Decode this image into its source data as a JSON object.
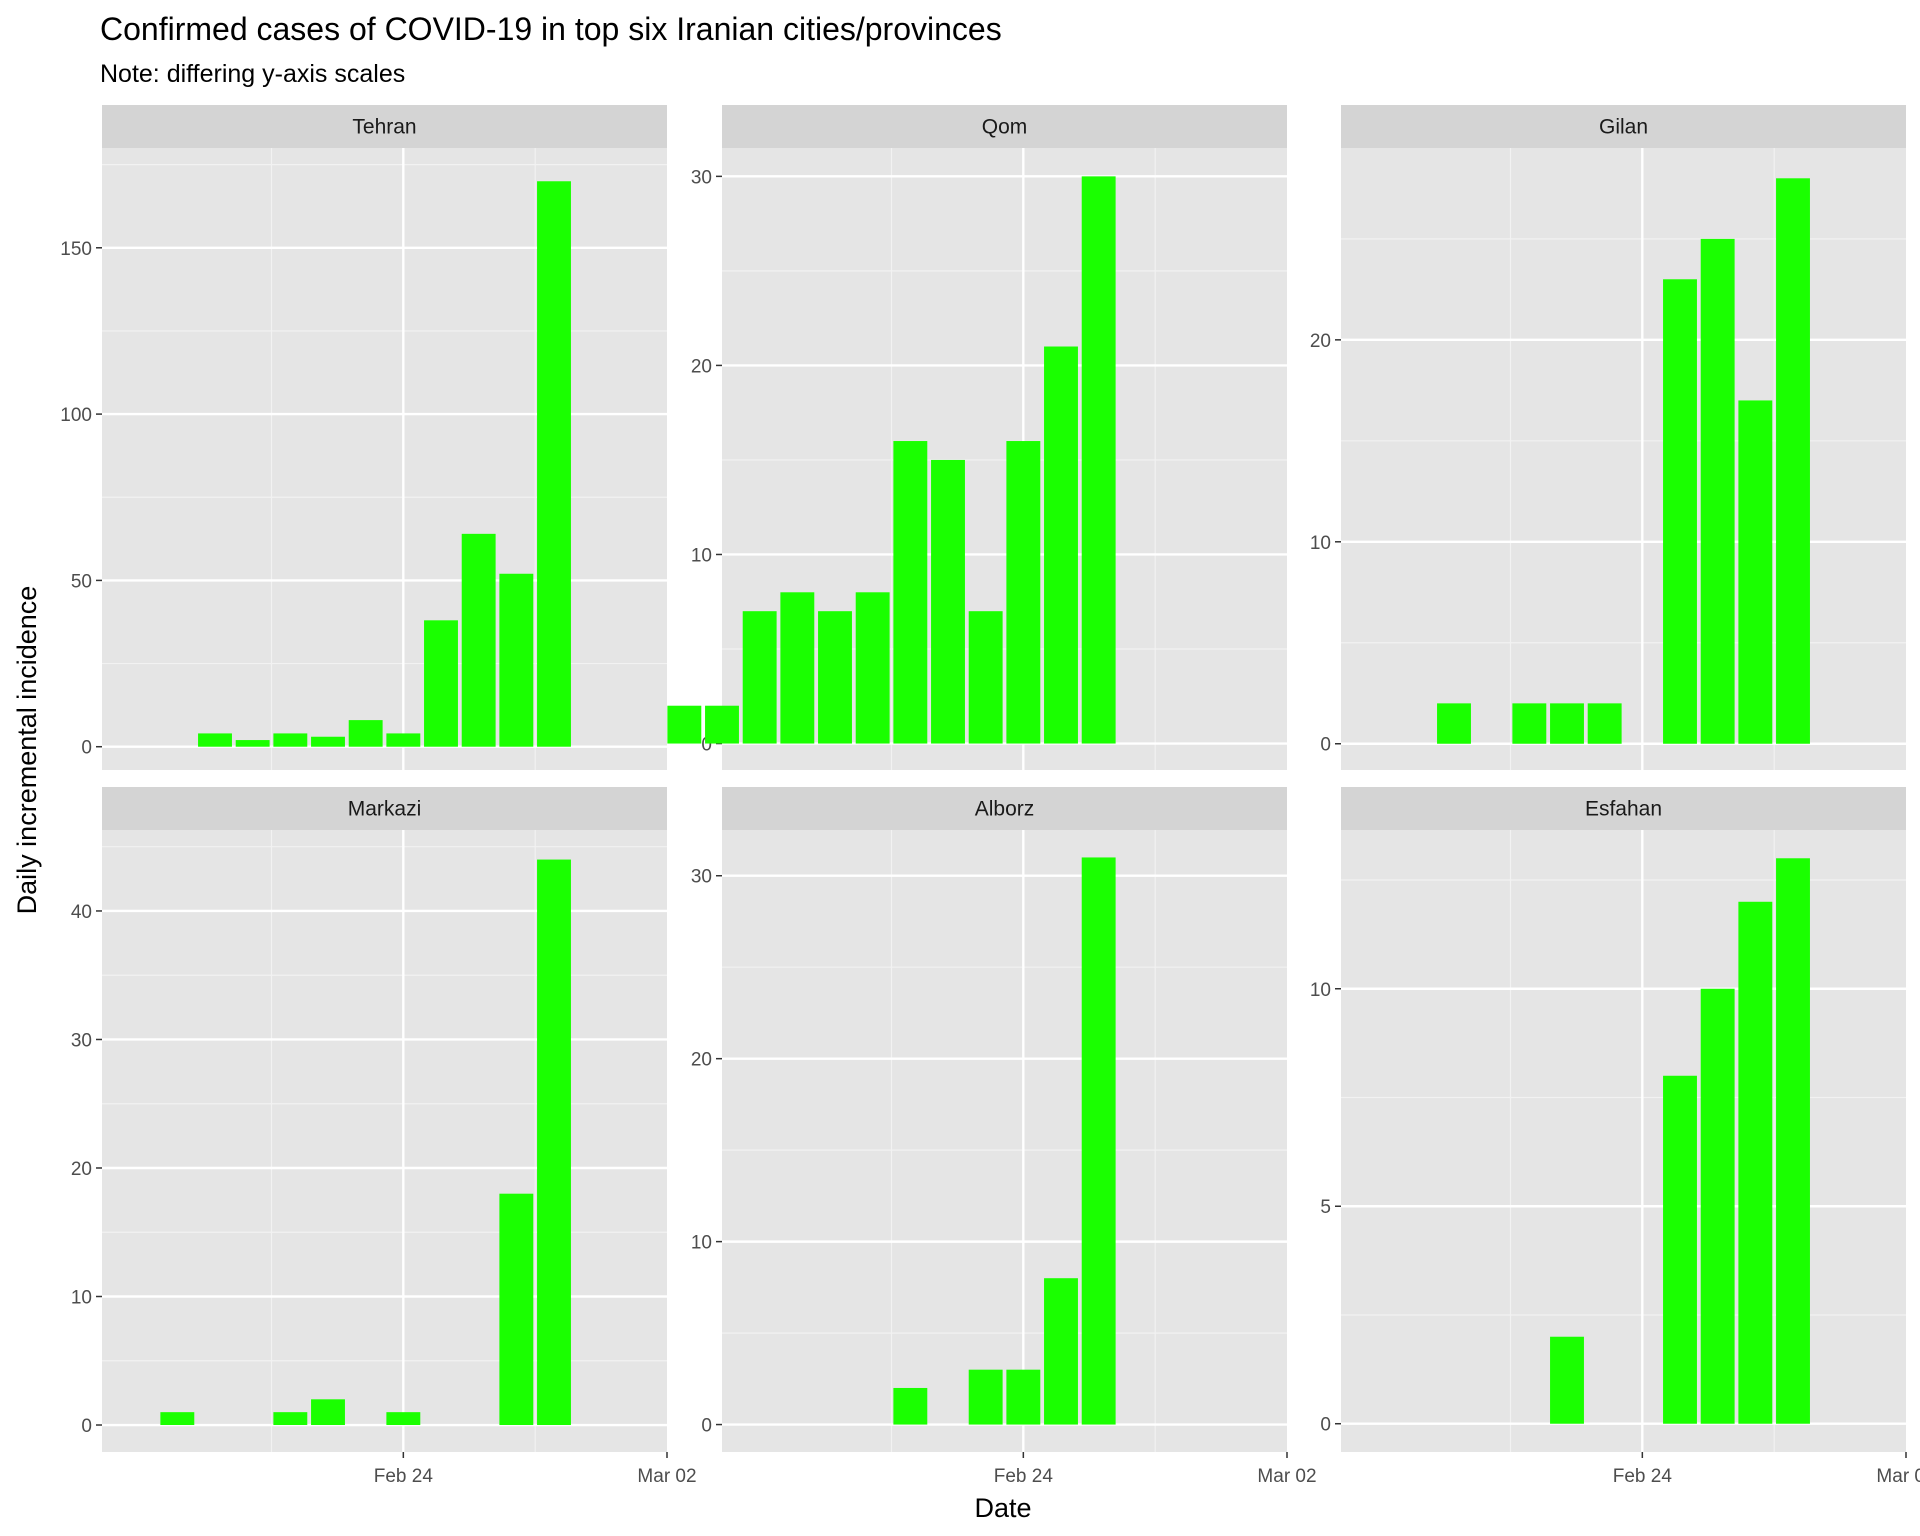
{
  "chart_data": {
    "type": "bar",
    "title": "Confirmed cases of COVID-19 in top six Iranian cities/provinces",
    "subtitle": "Note: differing y-axis scales",
    "xlabel": "Date",
    "ylabel": "Daily incremental incidence",
    "x_ticks": [
      {
        "date": "2020-02-24",
        "label": "Feb 24"
      },
      {
        "date": "2020-03-02",
        "label": "Mar 02"
      }
    ],
    "xlim": [
      "2020-02-16",
      "2020-03-02"
    ],
    "bar_color": "#1aff00",
    "panel_background": "#e5e5e5",
    "strip_background": "#d4d4d4",
    "grid": true,
    "facets": [
      {
        "name": "Tehran",
        "ylim": [
          -7,
          180
        ],
        "yticks": [
          0,
          50,
          100,
          150
        ],
        "points": [
          {
            "date": "2020-02-19",
            "value": 4
          },
          {
            "date": "2020-02-20",
            "value": 2
          },
          {
            "date": "2020-02-21",
            "value": 4
          },
          {
            "date": "2020-02-22",
            "value": 3
          },
          {
            "date": "2020-02-23",
            "value": 8
          },
          {
            "date": "2020-02-24",
            "value": 4
          },
          {
            "date": "2020-02-25",
            "value": 38
          },
          {
            "date": "2020-02-26",
            "value": 64
          },
          {
            "date": "2020-02-27",
            "value": 52
          },
          {
            "date": "2020-02-28",
            "value": 170
          }
        ]
      },
      {
        "name": "Qom",
        "ylim": [
          -1.4,
          31.5
        ],
        "yticks": [
          0,
          10,
          20,
          30
        ],
        "points": [
          {
            "date": "2020-02-15",
            "value": 2
          },
          {
            "date": "2020-02-16",
            "value": 2
          },
          {
            "date": "2020-02-17",
            "value": 7
          },
          {
            "date": "2020-02-18",
            "value": 8
          },
          {
            "date": "2020-02-19",
            "value": 7
          },
          {
            "date": "2020-02-20",
            "value": 8
          },
          {
            "date": "2020-02-21",
            "value": 16
          },
          {
            "date": "2020-02-22",
            "value": 15
          },
          {
            "date": "2020-02-23",
            "value": 7
          },
          {
            "date": "2020-02-24",
            "value": 16
          },
          {
            "date": "2020-02-25",
            "value": 21
          },
          {
            "date": "2020-02-26",
            "value": 30
          }
        ]
      },
      {
        "name": "Gilan",
        "ylim": [
          -1.3,
          29.5
        ],
        "yticks": [
          0,
          10,
          20
        ],
        "points": [
          {
            "date": "2020-02-19",
            "value": 2
          },
          {
            "date": "2020-02-21",
            "value": 2
          },
          {
            "date": "2020-02-22",
            "value": 2
          },
          {
            "date": "2020-02-23",
            "value": 2
          },
          {
            "date": "2020-02-25",
            "value": 23
          },
          {
            "date": "2020-02-26",
            "value": 25
          },
          {
            "date": "2020-02-27",
            "value": 17
          },
          {
            "date": "2020-02-28",
            "value": 28
          }
        ]
      },
      {
        "name": "Markazi",
        "ylim": [
          -2.1,
          46.3
        ],
        "yticks": [
          0,
          10,
          20,
          30,
          40
        ],
        "points": [
          {
            "date": "2020-02-18",
            "value": 1
          },
          {
            "date": "2020-02-21",
            "value": 1
          },
          {
            "date": "2020-02-22",
            "value": 2
          },
          {
            "date": "2020-02-24",
            "value": 1
          },
          {
            "date": "2020-02-27",
            "value": 18
          },
          {
            "date": "2020-02-28",
            "value": 44
          }
        ]
      },
      {
        "name": "Alborz",
        "ylim": [
          -1.5,
          32.5
        ],
        "yticks": [
          0,
          10,
          20,
          30
        ],
        "points": [
          {
            "date": "2020-02-21",
            "value": 2
          },
          {
            "date": "2020-02-23",
            "value": 3
          },
          {
            "date": "2020-02-24",
            "value": 3
          },
          {
            "date": "2020-02-25",
            "value": 8
          },
          {
            "date": "2020-02-26",
            "value": 31
          }
        ]
      },
      {
        "name": "Esfahan",
        "ylim": [
          -0.65,
          13.65
        ],
        "yticks": [
          0,
          5,
          10
        ],
        "points": [
          {
            "date": "2020-02-22",
            "value": 2
          },
          {
            "date": "2020-02-25",
            "value": 8
          },
          {
            "date": "2020-02-26",
            "value": 10
          },
          {
            "date": "2020-02-27",
            "value": 12
          },
          {
            "date": "2020-02-28",
            "value": 13
          }
        ]
      }
    ]
  }
}
